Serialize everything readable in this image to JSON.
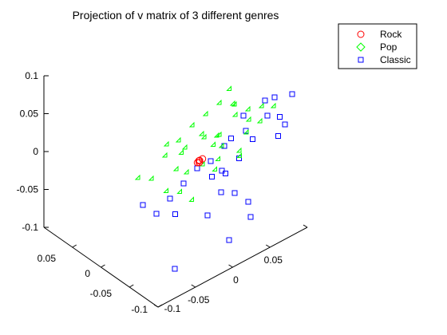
{
  "chart_data": {
    "type": "scatter",
    "title": "Projection of v matrix of 3 different genres",
    "projection": "3d",
    "grid": false,
    "legend_position": "top-right",
    "xlim": [
      -0.1,
      0.1
    ],
    "ylim": [
      -0.1,
      0.1
    ],
    "zlim": [
      -0.1,
      0.1
    ],
    "x_ticks": [
      "-0.1",
      "-0.05",
      "0",
      "0.05",
      "0.1"
    ],
    "y_ticks": [
      "-0.1",
      "-0.05",
      "0",
      "0.05"
    ],
    "z_ticks": [
      "-0.1",
      "-0.05",
      "0",
      "0.05",
      "0.1"
    ],
    "series": [
      {
        "name": "Rock",
        "marker": "circle",
        "color": "#ff0000",
        "points": [
          [
            0.001,
            0.002,
            -0.012
          ],
          [
            0.003,
            -0.001,
            -0.01
          ],
          [
            -0.002,
            0.001,
            -0.013
          ],
          [
            0.002,
            0.004,
            -0.008
          ],
          [
            0.0,
            0.0,
            -0.011
          ]
        ]
      },
      {
        "name": "Pop",
        "marker": "diamond",
        "color": "#00ff00",
        "points": [
          [
            0.02,
            -0.01,
            0.05
          ],
          [
            0.03,
            -0.02,
            0.04
          ],
          [
            0.01,
            0.0,
            0.045
          ],
          [
            0.04,
            -0.01,
            0.035
          ],
          [
            0.0,
            0.01,
            0.04
          ],
          [
            -0.01,
            0.02,
            0.03
          ],
          [
            0.025,
            -0.03,
            0.03
          ],
          [
            0.05,
            -0.02,
            0.02
          ],
          [
            0.015,
            0.01,
            0.025
          ],
          [
            -0.02,
            0.03,
            0.02
          ],
          [
            0.035,
            -0.04,
            0.015
          ],
          [
            0.005,
            0.0,
            0.02
          ],
          [
            0.045,
            -0.05,
            0.01
          ],
          [
            -0.01,
            0.015,
            0.01
          ],
          [
            0.02,
            -0.01,
            0.01
          ],
          [
            0.03,
            0.0,
            0.005
          ],
          [
            -0.03,
            0.04,
            0.0
          ],
          [
            0.01,
            -0.02,
            0.0
          ],
          [
            0.04,
            -0.03,
            -0.005
          ],
          [
            0.0,
            0.02,
            -0.01
          ],
          [
            -0.02,
            0.01,
            -0.015
          ],
          [
            0.025,
            0.005,
            -0.02
          ],
          [
            0.015,
            -0.015,
            -0.025
          ],
          [
            -0.005,
            0.025,
            -0.03
          ],
          [
            0.035,
            -0.025,
            -0.03
          ],
          [
            0.05,
            -0.04,
            0.0
          ],
          [
            0.06,
            -0.05,
            0.01
          ],
          [
            -0.04,
            0.05,
            0.01
          ],
          [
            0.005,
            0.03,
            0.03
          ],
          [
            0.02,
            0.02,
            0.0
          ],
          [
            -0.015,
            0.035,
            -0.02
          ],
          [
            0.03,
            0.015,
            0.02
          ],
          [
            0.01,
            0.025,
            -0.04
          ],
          [
            0.045,
            -0.01,
            -0.01
          ],
          [
            -0.025,
            0.02,
            0.025
          ],
          [
            0.015,
            -0.035,
            0.045
          ]
        ]
      },
      {
        "name": "Classic",
        "marker": "square",
        "color": "#0000ff",
        "points": [
          [
            0.02,
            -0.05,
            0.0
          ],
          [
            0.01,
            -0.03,
            -0.02
          ],
          [
            0.03,
            -0.04,
            -0.01
          ],
          [
            0.0,
            -0.02,
            -0.03
          ],
          [
            0.04,
            -0.06,
            0.01
          ],
          [
            0.025,
            -0.035,
            -0.04
          ],
          [
            -0.01,
            -0.01,
            -0.03
          ],
          [
            0.015,
            -0.025,
            -0.05
          ],
          [
            0.05,
            -0.05,
            0.0
          ],
          [
            0.035,
            -0.045,
            -0.025
          ],
          [
            0.005,
            -0.015,
            -0.045
          ],
          [
            -0.02,
            0.0,
            -0.04
          ],
          [
            0.045,
            -0.07,
            0.005
          ],
          [
            0.06,
            -0.08,
            0.0
          ],
          [
            0.02,
            -0.01,
            -0.06
          ],
          [
            -0.03,
            0.01,
            -0.05
          ],
          [
            0.03,
            -0.02,
            -0.07
          ],
          [
            0.01,
            0.0,
            -0.08
          ],
          [
            -0.04,
            0.02,
            -0.06
          ],
          [
            0.0,
            -0.04,
            -0.06
          ],
          [
            0.055,
            -0.065,
            -0.015
          ],
          [
            -0.05,
            0.03,
            -0.04
          ],
          [
            0.04,
            -0.03,
            -0.09
          ],
          [
            0.03,
            -0.01,
            -0.12
          ],
          [
            0.05,
            -0.02,
            -0.1
          ],
          [
            -0.01,
            0.03,
            -0.12
          ],
          [
            0.065,
            -0.06,
            -0.02
          ],
          [
            0.06,
            -0.055,
            -0.03
          ],
          [
            0.015,
            -0.035,
            -0.015
          ],
          [
            -0.02,
            0.015,
            -0.065
          ]
        ]
      }
    ]
  }
}
